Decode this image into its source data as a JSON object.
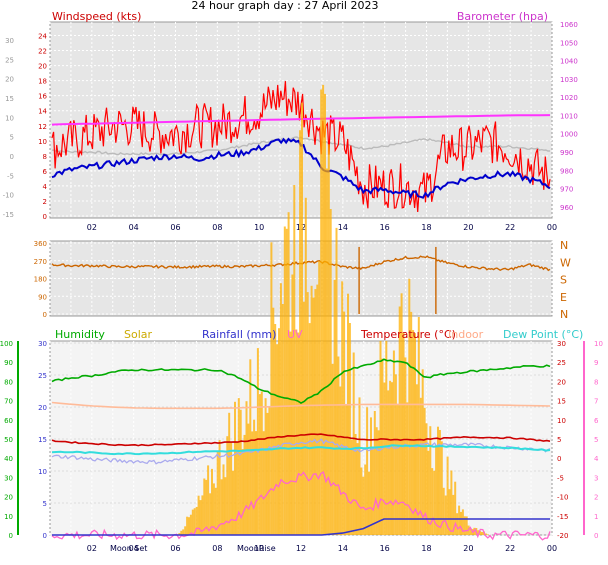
{
  "page_title": "24 hour graph day : 27 April 2023",
  "time_ticks": [
    "02",
    "04",
    "06",
    "08",
    "10",
    "12",
    "14",
    "16",
    "18",
    "20",
    "22",
    "00"
  ],
  "moon_labels": {
    "set": "Moon Set",
    "rise": "MoonRise"
  },
  "colors": {
    "wind": "#ff0000",
    "wind_avg": "#0000cc",
    "barometer": "#ff33ff",
    "barometer_grey": "#bbbbbb",
    "direction": "#cc6600",
    "humidity": "#00aa00",
    "solar": "#ffb000",
    "rainfall": "#3333cc",
    "uv": "#ff66cc",
    "temperature": "#cc0000",
    "indoor": "#ffbb99",
    "dew_point": "#33dddd",
    "plot_bg": "#e6e6e6",
    "plot_bg_bottom": "#f4f4f4"
  },
  "chart_data": [
    {
      "type": "line",
      "id": "wind-barometer",
      "legend": {
        "left": "Windspeed (kts)",
        "right": "Barometer (hpa)"
      },
      "x": [
        "00",
        "01",
        "02",
        "03",
        "04",
        "05",
        "06",
        "07",
        "08",
        "09",
        "10",
        "11",
        "12",
        "13",
        "14",
        "15",
        "16",
        "17",
        "18",
        "19",
        "20",
        "21",
        "22",
        "23",
        "00"
      ],
      "left_axis": {
        "label": "Windspeed (kts)",
        "ticks": [
          0,
          2,
          4,
          6,
          8,
          10,
          12,
          14,
          16,
          18,
          20,
          22,
          24
        ],
        "ylim": [
          0,
          25
        ]
      },
      "outer_left_axis": {
        "ticks": [
          30,
          25,
          20,
          15,
          10,
          5,
          0,
          -5,
          -10,
          -15
        ]
      },
      "right_axis": {
        "label": "Barometer (hpa)",
        "ticks": [
          960,
          970,
          980,
          990,
          1000,
          1010,
          1020,
          1030,
          1040,
          1050,
          1060
        ],
        "ylim": [
          955,
          1060
        ]
      },
      "series": [
        {
          "name": "Windspeed (kts)",
          "values": [
            5.5,
            6.2,
            6.6,
            7.0,
            7.4,
            7.8,
            8.0,
            7.6,
            8.1,
            8.3,
            9.0,
            10.1,
            9.6,
            6.5,
            5.2,
            3.3,
            3.5,
            3.0,
            2.8,
            4.3,
            4.9,
            5.4,
            5.6,
            4.9,
            4.0
          ],
          "gust_values": [
            9,
            10,
            11,
            12,
            12,
            11,
            11,
            12,
            12,
            13,
            14,
            16,
            15,
            11,
            10,
            4,
            4,
            4,
            3,
            9,
            9,
            10,
            9,
            7,
            5
          ]
        },
        {
          "name": "Barometer (hpa)",
          "values": [
            1005,
            1005.3,
            1005.5,
            1005.8,
            1006,
            1006.3,
            1006.5,
            1006.8,
            1007,
            1007.2,
            1007.5,
            1007.7,
            1008,
            1008.2,
            1008.4,
            1008.6,
            1008.8,
            1009,
            1009.2,
            1009.4,
            1009.6,
            1009.8,
            1010,
            1010.1,
            1010.2
          ]
        },
        {
          "name": "Barometer trend",
          "values": [
            991,
            990,
            990,
            989,
            989,
            989,
            989,
            990,
            991,
            993,
            995,
            997,
            998,
            996,
            994,
            992,
            993,
            995,
            997,
            995,
            993,
            993,
            993,
            992,
            991
          ]
        }
      ]
    },
    {
      "type": "line",
      "id": "wind-direction",
      "x": [
        "00",
        "01",
        "02",
        "03",
        "04",
        "05",
        "06",
        "07",
        "08",
        "09",
        "10",
        "11",
        "12",
        "13",
        "14",
        "15",
        "16",
        "17",
        "18",
        "19",
        "20",
        "21",
        "22",
        "23",
        "00"
      ],
      "left_axis": {
        "ticks": [
          0,
          90,
          180,
          270,
          360
        ],
        "ylim": [
          0,
          360
        ]
      },
      "right_axis": {
        "ticks": [
          "N",
          "W",
          "S",
          "E",
          "N"
        ]
      },
      "series": [
        {
          "name": "Wind direction",
          "values": [
            250,
            245,
            245,
            240,
            240,
            240,
            238,
            240,
            242,
            240,
            245,
            250,
            260,
            265,
            240,
            230,
            265,
            285,
            290,
            260,
            240,
            230,
            225,
            250,
            225
          ]
        }
      ]
    },
    {
      "type": "line",
      "id": "weather",
      "legend": [
        "Humidity",
        "Solar",
        "Rainfall (mm)",
        "UV",
        "Temperature (°C)",
        "Indoor",
        "Dew Point (°C)"
      ],
      "x": [
        "00",
        "01",
        "02",
        "03",
        "04",
        "05",
        "06",
        "07",
        "08",
        "09",
        "10",
        "11",
        "12",
        "13",
        "14",
        "15",
        "16",
        "17",
        "18",
        "19",
        "20",
        "21",
        "22",
        "23",
        "00"
      ],
      "humidity_axis": {
        "ticks": [
          0,
          10,
          20,
          30,
          40,
          50,
          60,
          70,
          80,
          90,
          100
        ],
        "ylim": [
          0,
          100
        ]
      },
      "rain_axis": {
        "ticks": [
          0,
          5,
          10,
          15,
          20,
          25,
          30
        ],
        "ylim": [
          0,
          30
        ]
      },
      "temp_axis": {
        "ticks": [
          30,
          25,
          20,
          15,
          10,
          5,
          0,
          -5,
          -10,
          -15,
          -20
        ],
        "ylim": [
          -20,
          30
        ]
      },
      "uv_axis": {
        "ticks": [
          0,
          1,
          2,
          3,
          4,
          5,
          6,
          7,
          8,
          9,
          10
        ],
        "ylim": [
          0,
          10
        ]
      },
      "series": [
        {
          "name": "Humidity",
          "values": [
            80,
            82,
            83,
            85,
            86,
            86,
            86,
            86,
            86,
            82,
            76,
            72,
            69,
            75,
            85,
            88,
            91,
            90,
            82,
            84,
            85,
            86,
            87,
            88,
            88
          ]
        },
        {
          "name": "Solar",
          "values": [
            0,
            0,
            0,
            0,
            0,
            0,
            0,
            5,
            13,
            20,
            26,
            47,
            55,
            58,
            35,
            15,
            28,
            38,
            22,
            10,
            2,
            0,
            0,
            0,
            0
          ]
        },
        {
          "name": "Rainfall (mm)",
          "values": [
            0,
            0,
            0,
            0,
            0,
            0,
            0,
            0,
            0,
            0,
            0,
            0,
            0,
            0,
            0.3,
            1.0,
            2.5,
            2.5,
            2.5,
            2.5,
            2.5,
            2.5,
            2.5,
            2.5,
            2.5
          ]
        },
        {
          "name": "UV",
          "values": [
            0,
            0,
            0,
            0,
            0,
            0,
            0,
            0.1,
            0.5,
            1.0,
            1.8,
            2.8,
            3.0,
            3.2,
            2.2,
            1.3,
            1.8,
            1.7,
            0.9,
            0.5,
            0.2,
            0,
            0,
            0,
            0
          ]
        },
        {
          "name": "Temperature (°C)",
          "values": [
            4.6,
            4.1,
            3.8,
            3.5,
            3.4,
            3.5,
            3.6,
            3.9,
            4.0,
            4.3,
            4.9,
            5.6,
            6.0,
            6.2,
            5.5,
            4.8,
            4.9,
            4.8,
            4.9,
            5.2,
            5.5,
            5.4,
            5.3,
            4.9,
            4.4
          ]
        },
        {
          "name": "Indoor",
          "values": [
            14.5,
            14,
            13.6,
            13.3,
            13.1,
            13.0,
            13.0,
            13.0,
            13.0,
            13.1,
            13.3,
            13.5,
            13.7,
            13.8,
            13.9,
            14.0,
            14.0,
            14.0,
            14.0,
            14.0,
            14.0,
            13.9,
            13.8,
            13.7,
            13.6
          ]
        },
        {
          "name": "Dew Point (°C)",
          "values": [
            1.6,
            1.6,
            1.4,
            1.2,
            1.2,
            1.3,
            1.4,
            1.7,
            1.8,
            1.9,
            2.1,
            2.5,
            2.7,
            2.8,
            2.5,
            2.6,
            3.1,
            3.4,
            3.2,
            3.0,
            3.0,
            2.8,
            2.7,
            2.4,
            2.0
          ]
        },
        {
          "name": "Apparent temperature",
          "values": [
            0.5,
            0.3,
            -0.3,
            -0.6,
            -0.8,
            -1.0,
            -0.5,
            0,
            0.5,
            1.0,
            2.0,
            3.2,
            4.2,
            4.5,
            3.0,
            1.8,
            2.8,
            3.2,
            3.5,
            3.5,
            3.5,
            3.2,
            2.8,
            2.5,
            2.0
          ]
        }
      ]
    }
  ]
}
